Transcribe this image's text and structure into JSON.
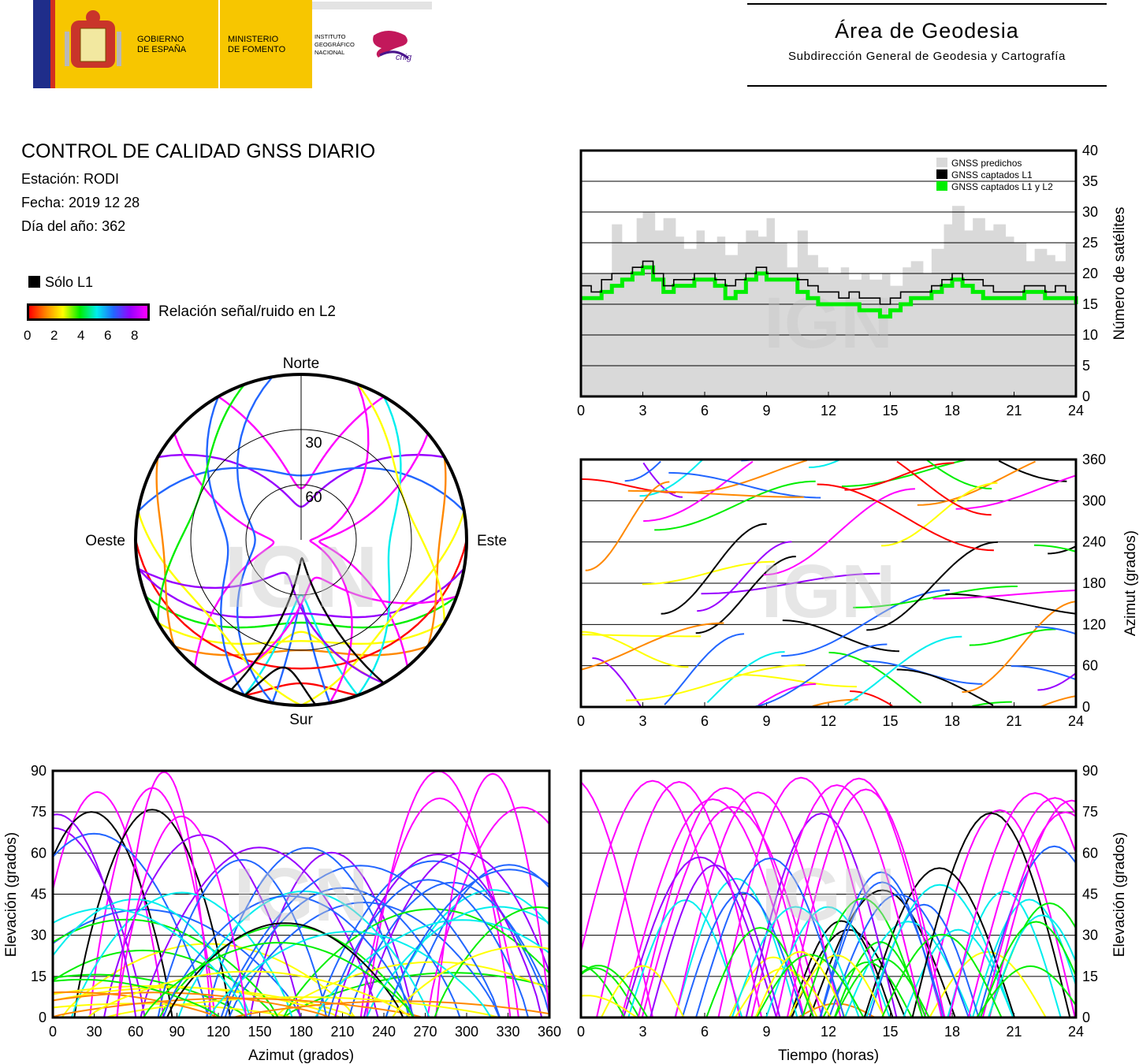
{
  "header": {
    "gov_line1": "GOBIERNO",
    "gov_line2": "DE ESPAÑA",
    "min_line1": "MINISTERIO",
    "min_line2": "DE FOMENTO",
    "ign_line1": "INSTITUTO",
    "ign_line2": "GEOGRÁFICO",
    "ign_line3": "NACIONAL",
    "cnig_text": "cnig",
    "area_title": "Área de Geodesia",
    "area_subtitle": "Subdirección General de Geodesia y Cartografía"
  },
  "report": {
    "title": "CONTROL DE CALIDAD GNSS DIARIO",
    "station": "Estación: RODI",
    "date": "Fecha: 2019 12 28",
    "doy": "Día del año: 362"
  },
  "legend": {
    "l1_only": "Sólo L1",
    "snr_label": "Relación señal/ruido en L2",
    "snr_ticks": [
      "0",
      "2",
      "4",
      "6",
      "8"
    ]
  },
  "colors": {
    "predicted": "#d9d9d9",
    "l1": "#000000",
    "l1l2": "#00ee00",
    "snr_scale": [
      "#ff0000",
      "#ff8800",
      "#ffff00",
      "#00ee00",
      "#00eeee",
      "#2266ff",
      "#9900ff",
      "#ff00ff"
    ]
  },
  "watermark": "IGN",
  "chart_data": [
    {
      "id": "satellite-count",
      "type": "area",
      "xlim": [
        0,
        24
      ],
      "ylim": [
        0,
        40
      ],
      "x_ticks": [
        "0",
        "3",
        "6",
        "9",
        "12",
        "15",
        "18",
        "21",
        "24"
      ],
      "y_ticks": [
        "0",
        "5",
        "10",
        "15",
        "20",
        "25",
        "30",
        "35",
        "40"
      ],
      "ylabel": "Número de satélites",
      "grid": true,
      "legend_position": "top-right",
      "series": [
        {
          "name": "GNSS predichos",
          "x": [
            0,
            1,
            1.5,
            2,
            2.7,
            3,
            3.6,
            4,
            4.6,
            5,
            5.6,
            6,
            6.6,
            7,
            7.6,
            8,
            8.6,
            9,
            9.4,
            10,
            10.5,
            11,
            11.5,
            12,
            12.6,
            13,
            13.6,
            14,
            14.6,
            15,
            15.6,
            16,
            16.6,
            17,
            17.6,
            18,
            18.6,
            19,
            19.6,
            20,
            20.6,
            21,
            21.6,
            22,
            22.6,
            23,
            23.5,
            24
          ],
          "y": [
            20,
            20,
            28,
            25,
            29,
            30,
            27,
            29,
            26,
            24,
            27,
            25,
            26,
            23,
            25,
            27,
            26,
            29,
            25,
            21,
            27,
            23,
            21,
            20,
            21,
            19,
            20,
            19,
            20,
            18,
            21,
            22,
            20,
            24,
            28,
            31,
            27,
            29,
            27,
            28,
            26,
            25,
            22,
            24,
            23,
            22,
            25,
            24
          ]
        },
        {
          "name": "GNSS captados L1",
          "x": [
            0,
            0.5,
            1,
            1.5,
            2,
            2.5,
            3,
            3.5,
            4,
            4.5,
            5,
            5.5,
            6,
            6.5,
            7,
            7.5,
            8,
            8.5,
            9,
            9.5,
            10,
            10.5,
            11,
            11.5,
            12,
            12.5,
            13,
            13.5,
            14,
            14.5,
            15,
            15.5,
            16,
            16.5,
            17,
            17.5,
            18,
            18.5,
            19,
            19.5,
            20,
            20.5,
            21,
            21.5,
            22,
            22.5,
            23,
            23.5,
            24
          ],
          "y": [
            18,
            17,
            19,
            20,
            20,
            21,
            22,
            20,
            18,
            19,
            19,
            20,
            20,
            19,
            18,
            19,
            20,
            21,
            20,
            20,
            20,
            19,
            18,
            17,
            17,
            16,
            17,
            16,
            16,
            15,
            16,
            17,
            17,
            17,
            18,
            19,
            20,
            19,
            19,
            18,
            17,
            17,
            17,
            18,
            18,
            17,
            18,
            17,
            16
          ]
        },
        {
          "name": "GNSS captados L1 y L2",
          "x": [
            0,
            0.5,
            1,
            1.5,
            2,
            2.5,
            3,
            3.5,
            4,
            4.5,
            5,
            5.5,
            6,
            6.5,
            7,
            7.5,
            8,
            8.5,
            9,
            9.5,
            10,
            10.5,
            11,
            11.5,
            12,
            12.5,
            13,
            13.5,
            14,
            14.5,
            15,
            15.5,
            16,
            16.5,
            17,
            17.5,
            18,
            18.5,
            19,
            19.5,
            20,
            20.5,
            21,
            21.5,
            22,
            22.5,
            23,
            23.5,
            24
          ],
          "y": [
            16,
            16,
            17,
            18,
            19,
            20,
            21,
            19,
            17,
            18,
            18,
            19,
            19,
            18,
            16,
            17,
            19,
            20,
            19,
            19,
            19,
            17,
            16,
            15,
            15,
            15,
            15,
            14,
            14,
            13,
            14,
            15,
            16,
            16,
            17,
            18,
            19,
            18,
            17,
            16,
            16,
            16,
            16,
            17,
            17,
            16,
            16,
            16,
            15
          ]
        }
      ]
    },
    {
      "id": "skyplot",
      "type": "scatter",
      "projection": "polar",
      "ring_labels": [
        "30",
        "60"
      ],
      "direction_labels": {
        "north": "Norte",
        "south": "Sur",
        "west": "Oeste",
        "east": "Este"
      },
      "tracks": [
        {
          "az_start": 300,
          "az_end": 60,
          "el_max": 72,
          "snr": 8
        },
        {
          "az_start": 330,
          "az_end": 30,
          "el_max": 62,
          "snr": 9
        },
        {
          "az_start": 280,
          "az_end": 80,
          "el_max": 55,
          "snr": 6
        },
        {
          "az_start": 250,
          "az_end": 110,
          "el_max": 45,
          "snr": 4
        },
        {
          "az_start": 230,
          "az_end": 130,
          "el_max": 30,
          "snr": 1
        },
        {
          "az_start": 200,
          "az_end": 160,
          "el_max": 12,
          "snr": 0
        },
        {
          "az_start": 210,
          "az_end": 150,
          "el_max": 40,
          "snr": 3
        },
        {
          "az_start": 190,
          "az_end": 170,
          "el_max": 55,
          "snr": 7
        },
        {
          "az_start": 160,
          "az_end": 200,
          "el_max": 60,
          "snr": 5
        },
        {
          "az_start": 120,
          "az_end": 240,
          "el_max": 35,
          "snr": 2
        },
        {
          "az_start": 90,
          "az_end": 270,
          "el_max": 20,
          "snr": 0
        },
        {
          "az_start": 100,
          "az_end": 260,
          "el_max": 50,
          "snr": 8
        },
        {
          "az_start": 310,
          "az_end": 220,
          "el_max": 75,
          "snr": 9
        },
        {
          "az_start": 50,
          "az_end": 140,
          "el_max": 80,
          "snr": 9
        },
        {
          "az_start": 330,
          "az_end": 200,
          "el_max": 50,
          "snr": 6
        },
        {
          "az_start": 30,
          "az_end": 160,
          "el_max": 42,
          "snr": 5
        },
        {
          "az_start": 280,
          "az_end": 180,
          "el_max": 25,
          "snr": 3
        },
        {
          "az_start": 80,
          "az_end": 180,
          "el_max": 25,
          "snr": 2
        },
        {
          "az_start": 350,
          "az_end": 190,
          "el_max": 65,
          "snr": 7
        },
        {
          "az_start": 20,
          "az_end": 170,
          "el_max": 85,
          "snr": 9
        },
        {
          "az_start": 260,
          "az_end": 150,
          "el_max": 70,
          "snr": 8
        },
        {
          "az_start": 110,
          "az_end": 210,
          "el_max": 68,
          "snr": 9
        },
        {
          "az_start": 230,
          "az_end": 300,
          "el_max": 15,
          "snr": 1
        },
        {
          "az_start": 60,
          "az_end": 130,
          "el_max": 15,
          "snr": 1
        },
        {
          "az_start": 340,
          "az_end": 240,
          "el_max": 30,
          "snr": 4
        },
        {
          "az_start": 20,
          "az_end": 120,
          "el_max": 30,
          "snr": 3
        },
        {
          "az_start": 200,
          "az_end": 175,
          "el_max": 20,
          "snr": -1
        },
        {
          "az_start": 150,
          "az_end": 205,
          "el_max": 80,
          "snr": -1
        }
      ]
    },
    {
      "id": "azimuth-time",
      "type": "scatter",
      "xlim": [
        0,
        24
      ],
      "ylim": [
        0,
        360
      ],
      "x_ticks": [
        "0",
        "3",
        "6",
        "9",
        "12",
        "15",
        "18",
        "21",
        "24"
      ],
      "y_ticks": [
        "0",
        "60",
        "120",
        "180",
        "240",
        "300",
        "360"
      ],
      "ylabel": "Azimut (grados)",
      "grid": true
    },
    {
      "id": "elevation-azimuth",
      "type": "scatter",
      "xlim": [
        0,
        360
      ],
      "ylim": [
        0,
        90
      ],
      "x_ticks": [
        "0",
        "30",
        "60",
        "90",
        "120",
        "150",
        "180",
        "210",
        "240",
        "270",
        "300",
        "330",
        "360"
      ],
      "y_ticks": [
        "0",
        "15",
        "30",
        "45",
        "60",
        "75",
        "90"
      ],
      "xlabel": "Azimut (grados)",
      "ylabel": "Elevación (grados)",
      "grid": true
    },
    {
      "id": "elevation-time",
      "type": "scatter",
      "xlim": [
        0,
        24
      ],
      "ylim": [
        0,
        90
      ],
      "x_ticks": [
        "0",
        "3",
        "6",
        "9",
        "12",
        "15",
        "18",
        "21",
        "24"
      ],
      "y_ticks": [
        "0",
        "15",
        "30",
        "45",
        "60",
        "75",
        "90"
      ],
      "xlabel": "Tiempo (horas)",
      "ylabel": "Elevación (grados)",
      "grid": true
    }
  ]
}
